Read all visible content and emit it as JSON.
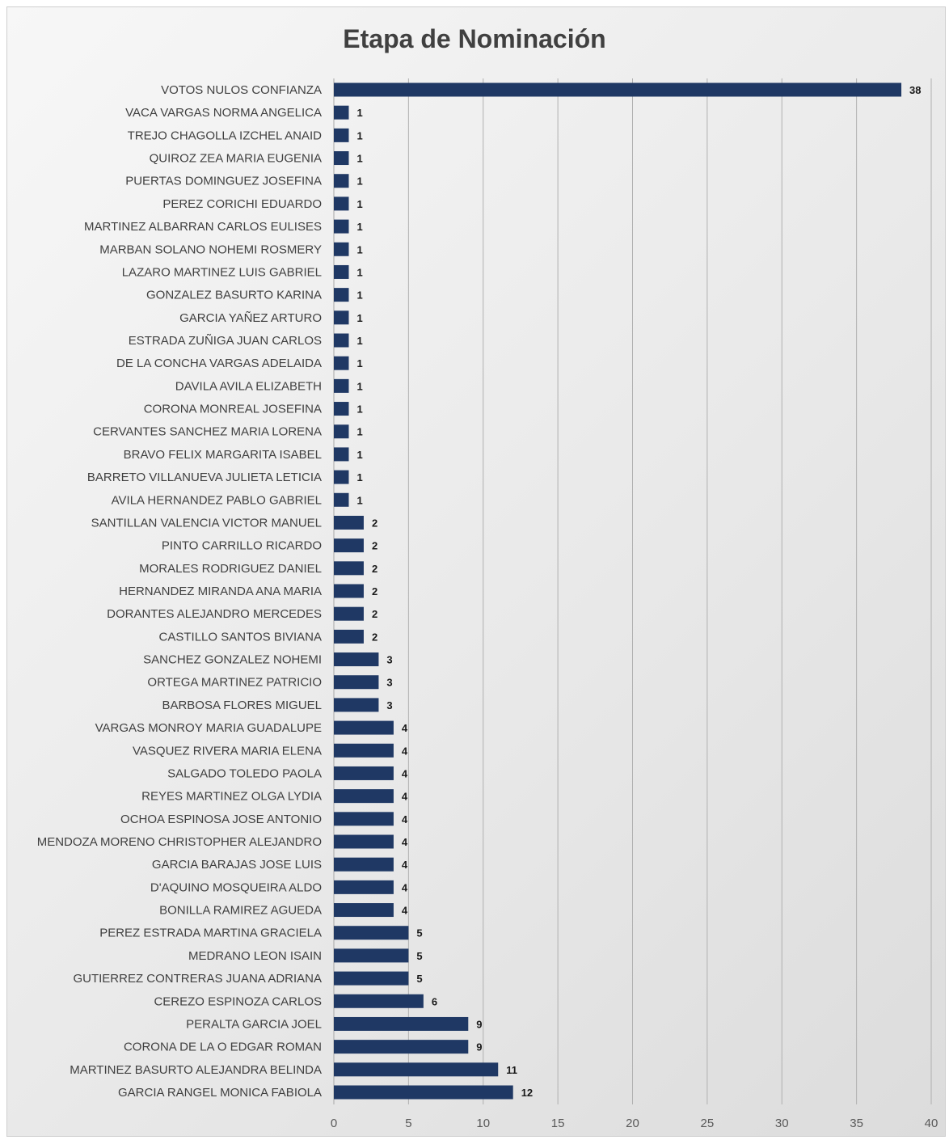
{
  "chart_data": {
    "type": "bar",
    "orientation": "horizontal",
    "title": "Etapa de Nominación",
    "xlabel": "",
    "ylabel": "",
    "xlim": [
      0,
      40
    ],
    "x_ticks": [
      0,
      5,
      10,
      15,
      20,
      25,
      30,
      35,
      40
    ],
    "grid": "vertical",
    "bar_color": "#1f3864",
    "categories": [
      "VOTOS NULOS CONFIANZA",
      "VACA VARGAS NORMA ANGELICA",
      "TREJO CHAGOLLA IZCHEL ANAID",
      "QUIROZ ZEA MARIA EUGENIA",
      "PUERTAS DOMINGUEZ JOSEFINA",
      "PEREZ CORICHI EDUARDO",
      "MARTINEZ ALBARRAN CARLOS EULISES",
      "MARBAN SOLANO NOHEMI ROSMERY",
      "LAZARO MARTINEZ LUIS GABRIEL",
      "GONZALEZ BASURTO KARINA",
      "GARCIA YAÑEZ ARTURO",
      "ESTRADA ZUÑIGA JUAN CARLOS",
      "DE LA CONCHA VARGAS ADELAIDA",
      "DAVILA AVILA ELIZABETH",
      "CORONA MONREAL JOSEFINA",
      "CERVANTES SANCHEZ MARIA LORENA",
      "BRAVO FELIX MARGARITA ISABEL",
      "BARRETO VILLANUEVA JULIETA LETICIA",
      "AVILA HERNANDEZ PABLO GABRIEL",
      "SANTILLAN VALENCIA VICTOR MANUEL",
      "PINTO CARRILLO RICARDO",
      "MORALES RODRIGUEZ DANIEL",
      "HERNANDEZ MIRANDA ANA MARIA",
      "DORANTES ALEJANDRO MERCEDES",
      "CASTILLO SANTOS BIVIANA",
      "SANCHEZ GONZALEZ NOHEMI",
      "ORTEGA MARTINEZ PATRICIO",
      "BARBOSA FLORES MIGUEL",
      "VARGAS MONROY MARIA GUADALUPE",
      "VASQUEZ RIVERA MARIA ELENA",
      "SALGADO TOLEDO PAOLA",
      "REYES MARTINEZ OLGA LYDIA",
      "OCHOA ESPINOSA JOSE ANTONIO",
      "MENDOZA MORENO CHRISTOPHER ALEJANDRO",
      "GARCIA BARAJAS JOSE LUIS",
      "D'AQUINO MOSQUEIRA ALDO",
      "BONILLA RAMIREZ AGUEDA",
      "PEREZ ESTRADA MARTINA GRACIELA",
      "MEDRANO LEON ISAIN",
      "GUTIERREZ CONTRERAS JUANA ADRIANA",
      "CEREZO ESPINOZA CARLOS",
      "PERALTA GARCIA JOEL",
      "CORONA DE LA O EDGAR ROMAN",
      "MARTINEZ BASURTO ALEJANDRA BELINDA",
      "GARCIA RANGEL MONICA FABIOLA"
    ],
    "values": [
      38,
      1,
      1,
      1,
      1,
      1,
      1,
      1,
      1,
      1,
      1,
      1,
      1,
      1,
      1,
      1,
      1,
      1,
      1,
      2,
      2,
      2,
      2,
      2,
      2,
      3,
      3,
      3,
      4,
      4,
      4,
      4,
      4,
      4,
      4,
      4,
      4,
      5,
      5,
      5,
      6,
      9,
      9,
      11,
      12
    ]
  }
}
